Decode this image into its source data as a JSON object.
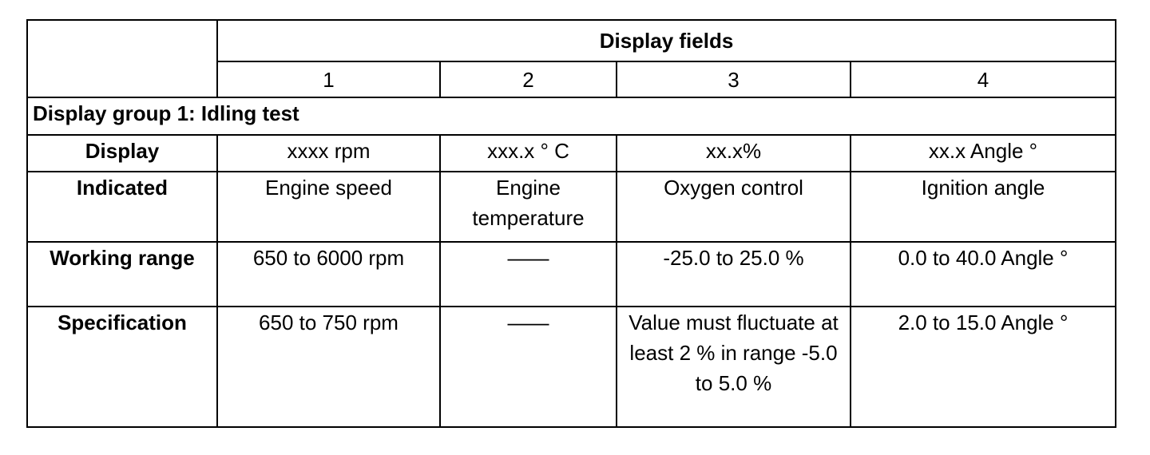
{
  "header": {
    "title": "Display fields",
    "columns": [
      "1",
      "2",
      "3",
      "4"
    ]
  },
  "group": "Display group 1: Idling test",
  "rows": [
    {
      "label": "Display",
      "cells": [
        "xxxx rpm",
        "xxx.x ° C",
        "xx.x%",
        "xx.x  Angle °"
      ]
    },
    {
      "label": "Indicated",
      "cells": [
        "Engine speed",
        "Engine temperature",
        "Oxygen control",
        "Ignition angle"
      ]
    },
    {
      "label": "Working range",
      "cells": [
        "650 to 6000 rpm",
        "——",
        "-25.0 to 25.0 %",
        "0.0 to 40.0  Angle °"
      ]
    },
    {
      "label": "Specification",
      "cells": [
        "650 to 750 rpm",
        "——",
        "Value must fluctuate at least 2 % in range -5.0 to 5.0 %",
        "2.0 to 15.0  Angle °"
      ]
    }
  ]
}
